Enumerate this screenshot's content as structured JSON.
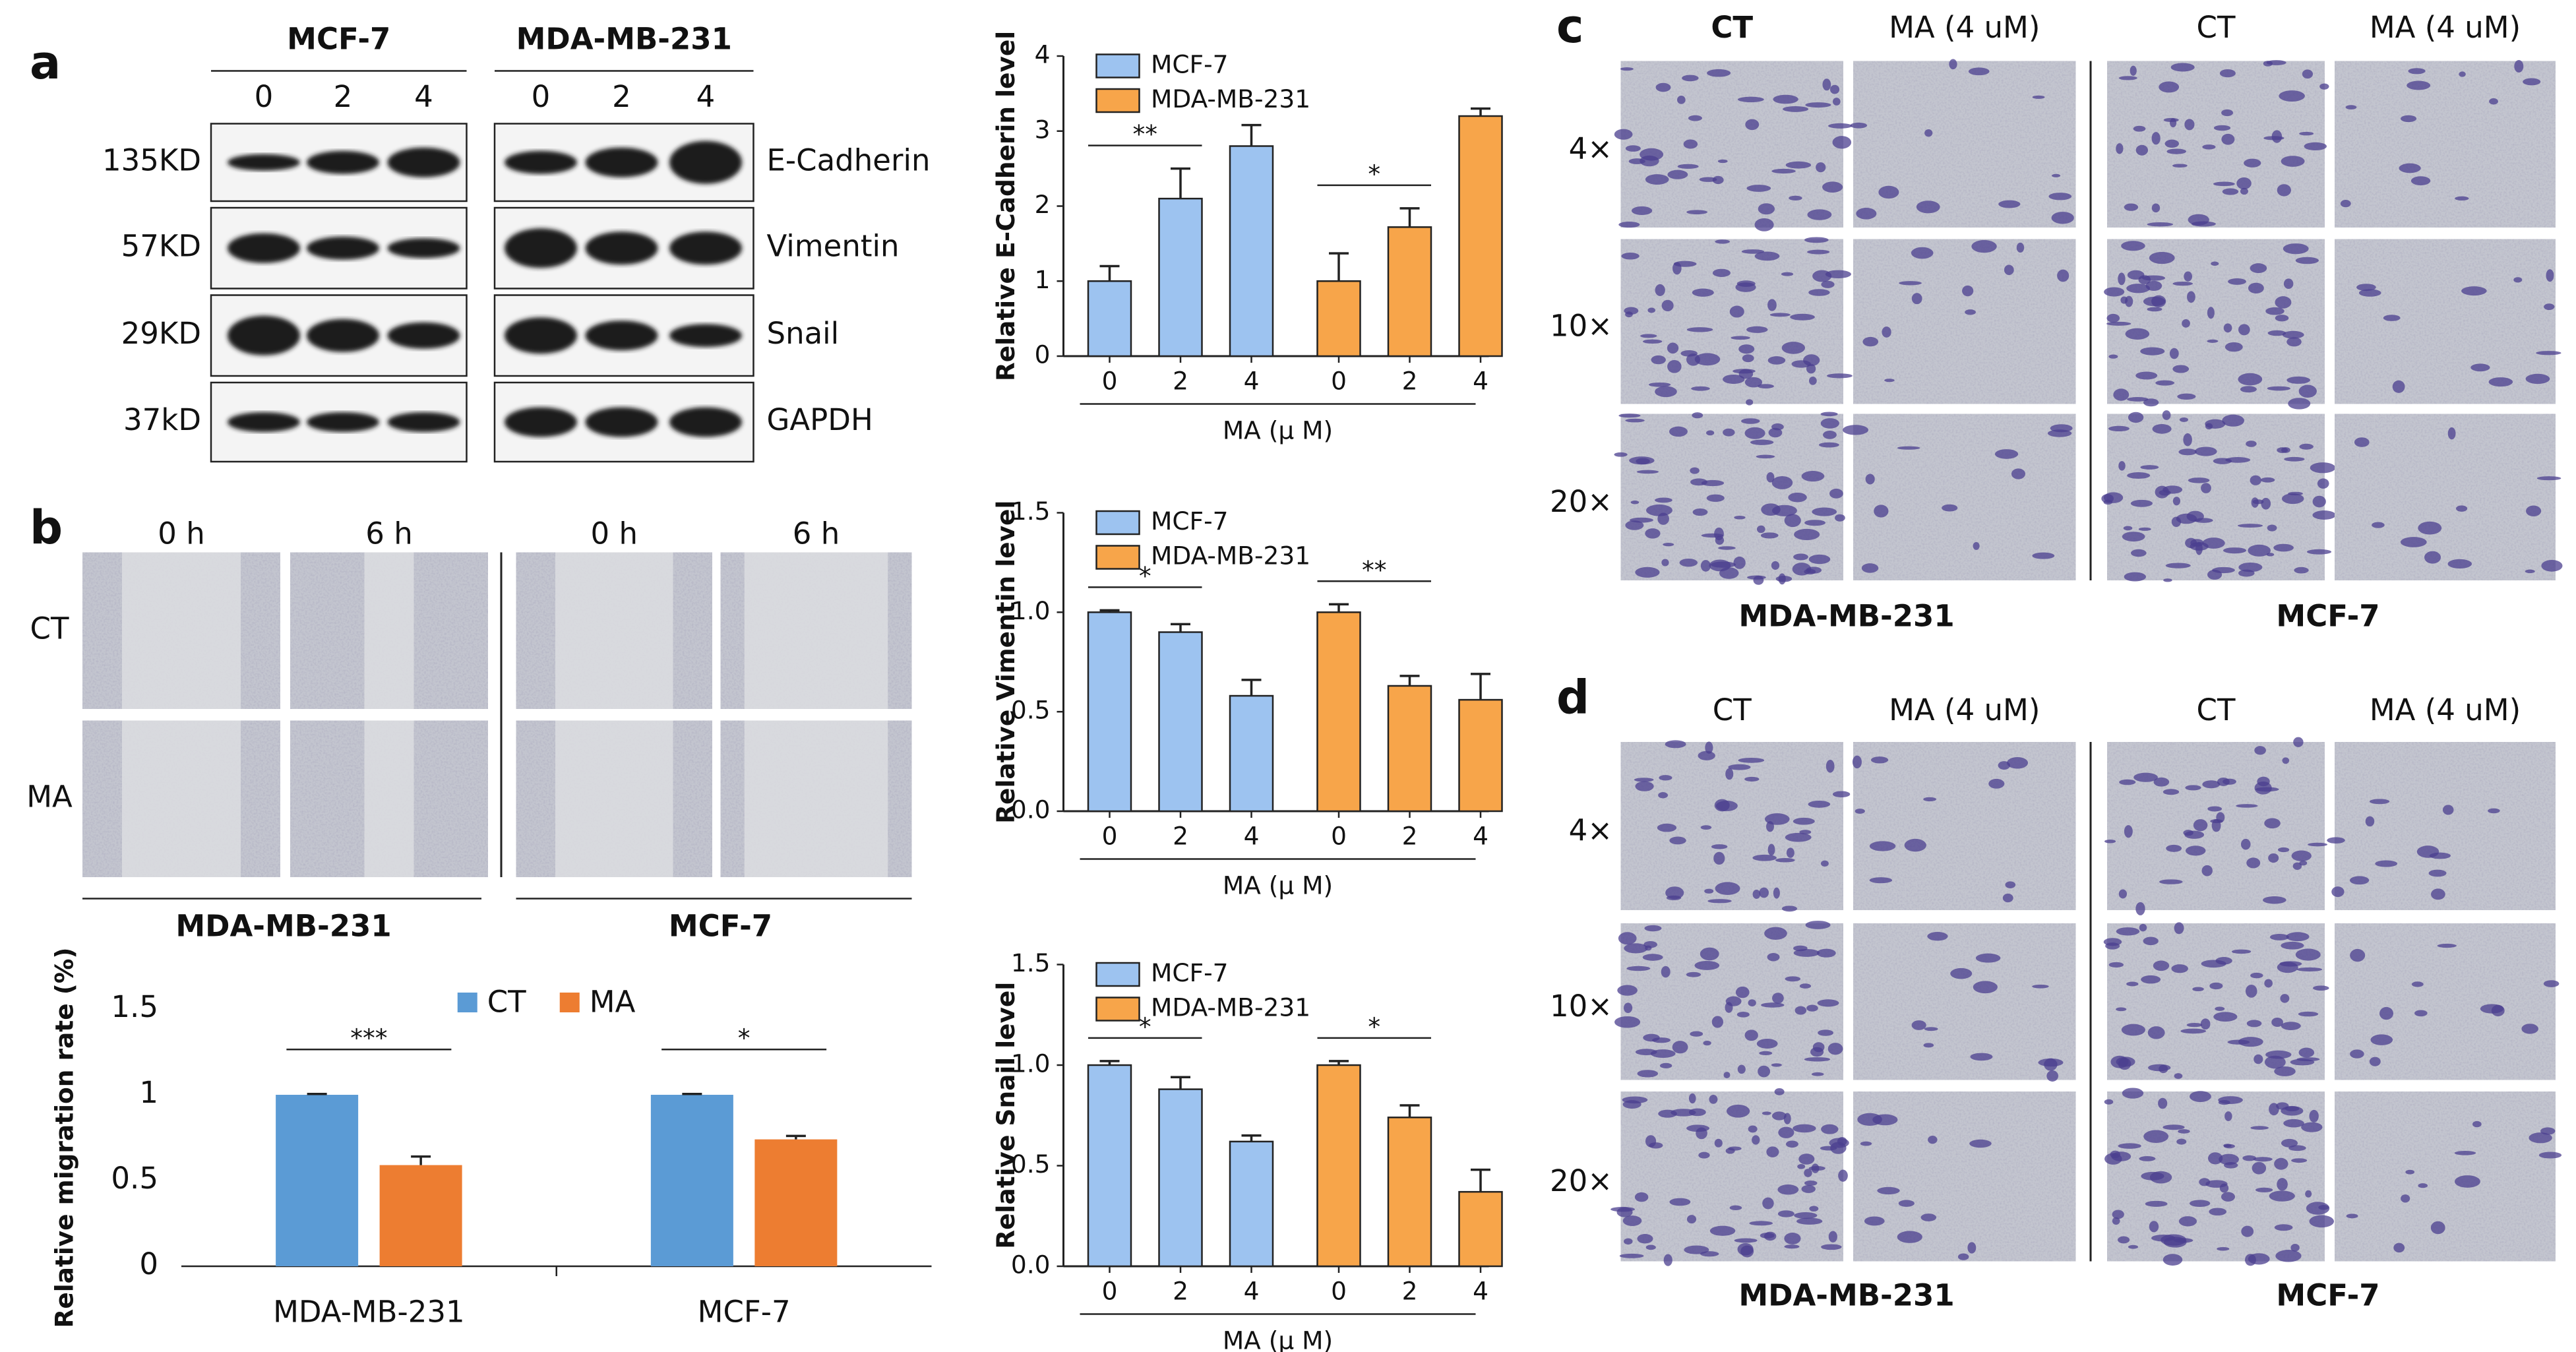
{
  "panel_labels": [
    "a",
    "b",
    "c",
    "d"
  ],
  "blot": {
    "groups": [
      "MCF-7",
      "MDA-MB-231"
    ],
    "doses": [
      "0",
      "2",
      "4"
    ],
    "proteins": [
      {
        "weight": "135KD",
        "name": "E-Cadherin"
      },
      {
        "weight": "57KD",
        "name": "Vimentin"
      },
      {
        "weight": "29KD",
        "name": "Snail"
      },
      {
        "weight": "37kD",
        "name": "GAPDH"
      }
    ]
  },
  "wound": {
    "times": [
      "0 h",
      "6 h"
    ],
    "treatments": [
      "CT",
      "MA"
    ],
    "cell_lines": [
      "MDA-MB-231",
      "MCF-7"
    ]
  },
  "invasion_c": {
    "columns": [
      "CT",
      "MA (4 uM)"
    ],
    "magnifications": [
      "4×",
      "10×",
      "20×"
    ],
    "cell_lines": [
      "MDA-MB-231",
      "MCF-7"
    ]
  },
  "invasion_d": {
    "columns": [
      "CT",
      "MA (4 uM)"
    ],
    "magnifications": [
      "4×",
      "10×",
      "20×"
    ],
    "cell_lines": [
      "MDA-MB-231",
      "MCF-7"
    ]
  },
  "chart_data": [
    {
      "type": "bar",
      "ylabel": "Relative E-Cadherin level",
      "xlabel": "MA (μ M)",
      "categories": [
        "0",
        "2",
        "4"
      ],
      "ylim": [
        0,
        4
      ],
      "yticks": [
        0,
        1,
        2,
        3,
        4
      ],
      "legend": "top-left",
      "series": [
        {
          "name": "MCF-7",
          "color": "#9dc3f0",
          "values": [
            1.0,
            2.1,
            2.8
          ],
          "errors": [
            0.2,
            0.4,
            0.28
          ],
          "significance": "**"
        },
        {
          "name": "MDA-MB-231",
          "color": "#f7a54a",
          "values": [
            1.0,
            1.72,
            3.2
          ],
          "errors": [
            0.37,
            0.25,
            0.1
          ],
          "significance": "*"
        }
      ]
    },
    {
      "type": "bar",
      "ylabel": "Relative Vimentin level",
      "xlabel": "MA (μ M)",
      "categories": [
        "0",
        "2",
        "4"
      ],
      "ylim": [
        0,
        1.5
      ],
      "yticks": [
        {
          "value": 0,
          "label": "0.0"
        },
        {
          "value": 0.5,
          "label": "0.5"
        },
        {
          "value": 1,
          "label": "1.0"
        },
        {
          "value": 1.5,
          "label": "1.5"
        }
      ],
      "legend": "top-left",
      "series": [
        {
          "name": "MCF-7",
          "color": "#9dc3f0",
          "values": [
            1.0,
            0.9,
            0.58
          ],
          "errors": [
            0.01,
            0.04,
            0.08
          ],
          "significance": "*"
        },
        {
          "name": "MDA-MB-231",
          "color": "#f7a54a",
          "values": [
            1.0,
            0.63,
            0.56
          ],
          "errors": [
            0.04,
            0.05,
            0.13
          ],
          "significance": "**"
        }
      ]
    },
    {
      "type": "bar",
      "ylabel": "Relative Snail level",
      "xlabel": "MA (μ M)",
      "categories": [
        "0",
        "2",
        "4"
      ],
      "ylim": [
        0,
        1.5
      ],
      "yticks": [
        {
          "value": 0,
          "label": "0.0"
        },
        {
          "value": 0.5,
          "label": "0.5"
        },
        {
          "value": 1,
          "label": "1.0"
        },
        {
          "value": 1.5,
          "label": "1.5"
        }
      ],
      "legend": "top-left",
      "series": [
        {
          "name": "MCF-7",
          "color": "#9dc3f0",
          "values": [
            1.0,
            0.88,
            0.62
          ],
          "errors": [
            0.02,
            0.06,
            0.03
          ],
          "significance": "*"
        },
        {
          "name": "MDA-MB-231",
          "color": "#f7a54a",
          "values": [
            1.0,
            0.74,
            0.37
          ],
          "errors": [
            0.02,
            0.06,
            0.11
          ],
          "significance": "*"
        }
      ]
    },
    {
      "type": "bar",
      "ylabel": "Relative migration rate (%)",
      "categories": [
        "MDA-MB-231",
        "MCF-7"
      ],
      "ylim": [
        0,
        1.5
      ],
      "yticks": [
        0,
        0.5,
        1,
        1.5
      ],
      "legend": "top",
      "significance": [
        "***",
        "*"
      ],
      "series": [
        {
          "name": "CT",
          "color": "#5b9bd5",
          "values": [
            1.0,
            1.0
          ],
          "errors": [
            0.005,
            0.005
          ]
        },
        {
          "name": "MA",
          "color": "#ed7d31",
          "values": [
            0.59,
            0.74
          ],
          "errors": [
            0.05,
            0.02
          ]
        }
      ]
    }
  ]
}
